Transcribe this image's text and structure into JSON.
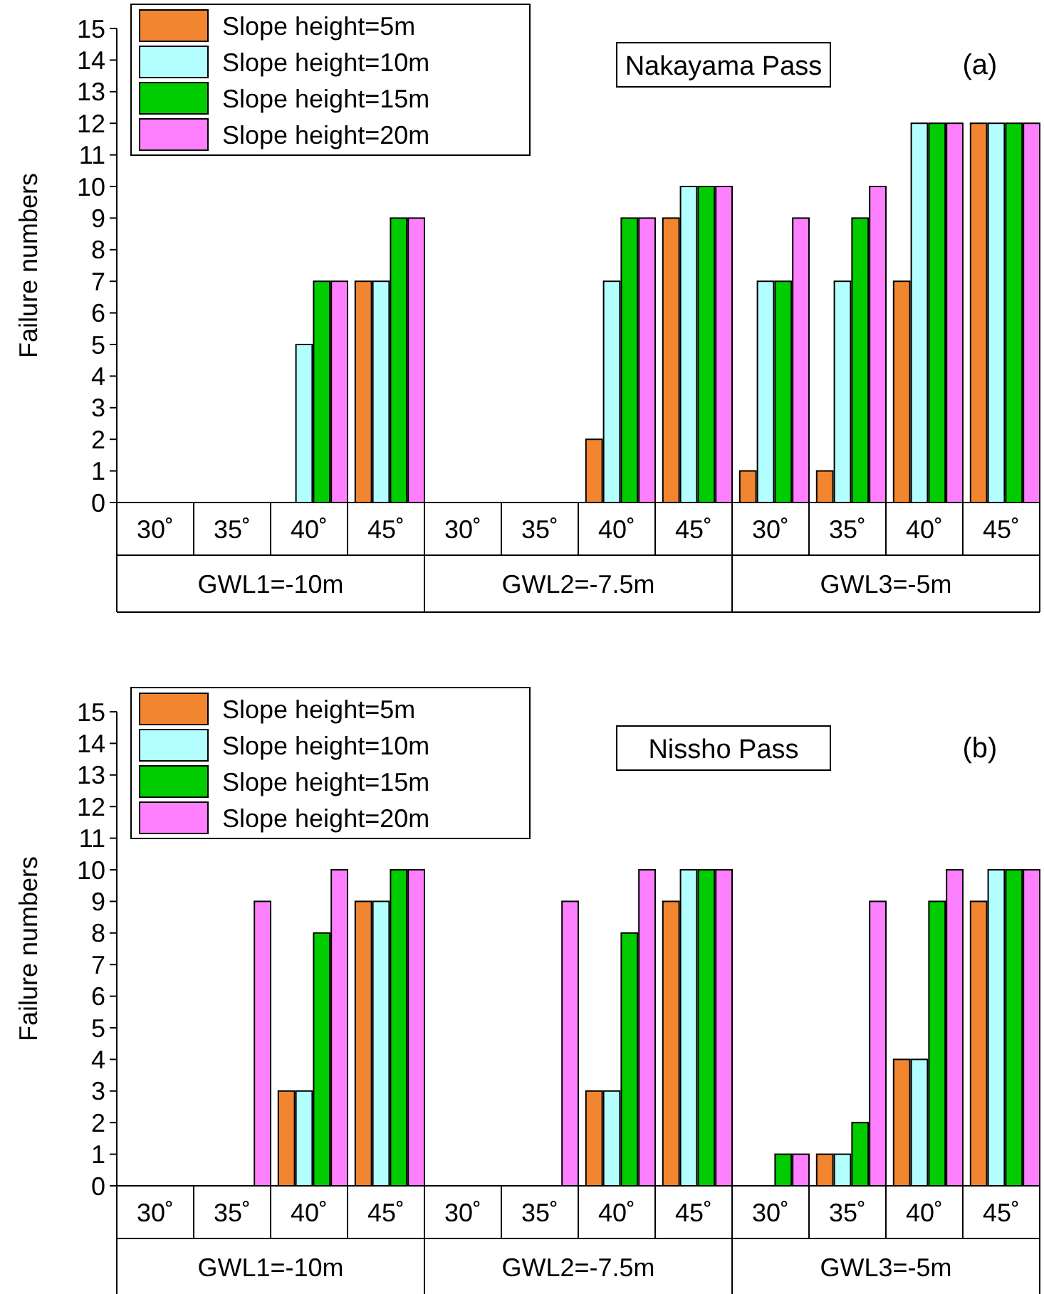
{
  "chart_data": [
    {
      "type": "bar",
      "title": "Nakayama Pass",
      "subtitle": "(a)",
      "ylabel": "Failure numbers",
      "categories": [
        "30˚",
        "35˚",
        "40˚",
        "45˚",
        "30˚",
        "35˚",
        "40˚",
        "45˚",
        "30˚",
        "35˚",
        "40˚",
        "45˚"
      ],
      "annotations": [
        "GWL1=-10m",
        "GWL2=-7.5m",
        "GWL3=-5m"
      ],
      "series": [
        {
          "name": "Slope height=5m",
          "color": "#f28530",
          "values": [
            0,
            0,
            0,
            7,
            0,
            0,
            2,
            9,
            1,
            1,
            7,
            12
          ]
        },
        {
          "name": "Slope height=10m",
          "color": "#b3ffff",
          "values": [
            0,
            0,
            5,
            7,
            0,
            0,
            7,
            10,
            7,
            7,
            12,
            12
          ]
        },
        {
          "name": "Slope height=15m",
          "color": "#00cc00",
          "values": [
            0,
            0,
            7,
            9,
            0,
            0,
            9,
            10,
            7,
            9,
            12,
            12
          ]
        },
        {
          "name": "Slope height=20m",
          "color": "#ff80ff",
          "values": [
            0,
            0,
            7,
            9,
            0,
            0,
            9,
            10,
            9,
            10,
            12,
            12
          ]
        }
      ],
      "ylim": [
        0,
        15
      ],
      "yticks": [
        0,
        1,
        2,
        3,
        4,
        5,
        6,
        7,
        8,
        9,
        10,
        11,
        12,
        13,
        14,
        15
      ],
      "legend": "top left"
    },
    {
      "type": "bar",
      "title": "Nissho Pass",
      "subtitle": "(b)",
      "ylabel": "Failure numbers",
      "categories": [
        "30˚",
        "35˚",
        "40˚",
        "45˚",
        "30˚",
        "35˚",
        "40˚",
        "45˚",
        "30˚",
        "35˚",
        "40˚",
        "45˚"
      ],
      "annotations": [
        "GWL1=-10m",
        "GWL2=-7.5m",
        "GWL3=-5m"
      ],
      "series": [
        {
          "name": "Slope height=5m",
          "color": "#f28530",
          "values": [
            0,
            0,
            3,
            9,
            0,
            0,
            3,
            9,
            0,
            1,
            4,
            9
          ]
        },
        {
          "name": "Slope height=10m",
          "color": "#b3ffff",
          "values": [
            0,
            0,
            3,
            9,
            0,
            0,
            3,
            10,
            0,
            1,
            4,
            10
          ]
        },
        {
          "name": "Slope height=15m",
          "color": "#00cc00",
          "values": [
            0,
            0,
            8,
            10,
            0,
            0,
            8,
            10,
            1,
            2,
            9,
            10
          ]
        },
        {
          "name": "Slope height=20m",
          "color": "#ff80ff",
          "values": [
            0,
            9,
            10,
            10,
            0,
            9,
            10,
            10,
            1,
            9,
            10,
            10
          ]
        }
      ],
      "ylim": [
        0,
        15
      ],
      "yticks": [
        0,
        1,
        2,
        3,
        4,
        5,
        6,
        7,
        8,
        9,
        10,
        11,
        12,
        13,
        14,
        15
      ],
      "legend": "top left"
    }
  ]
}
